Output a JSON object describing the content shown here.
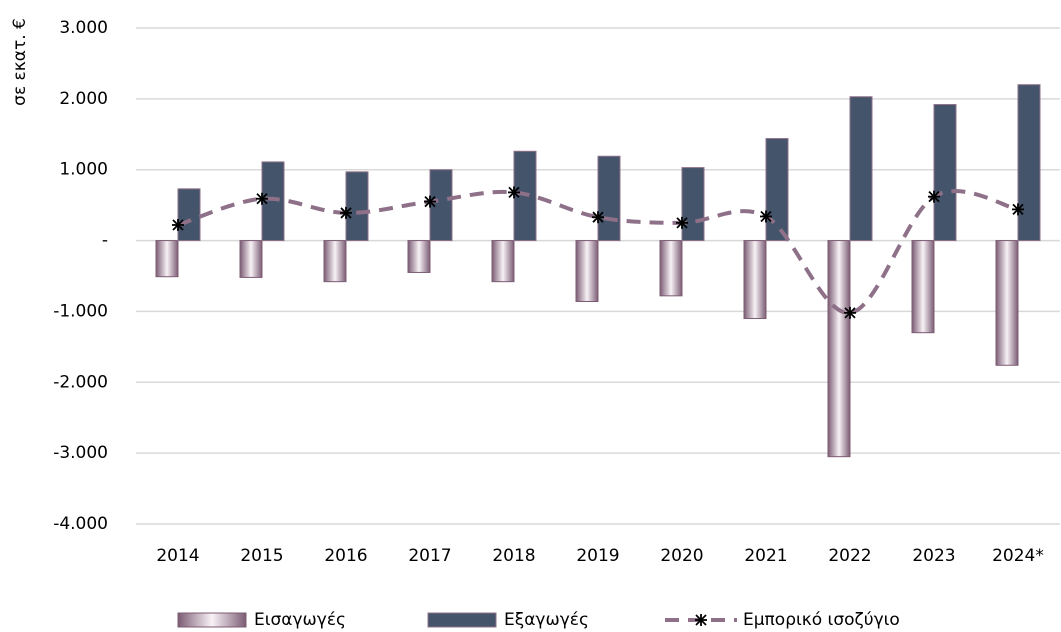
{
  "chart_data": {
    "type": "bar",
    "y_label": "σε εκατ. €",
    "categories": [
      "2014",
      "2015",
      "2016",
      "2017",
      "2018",
      "2019",
      "2020",
      "2021",
      "2022",
      "2023",
      "2024*"
    ],
    "series": [
      {
        "name": "Εισαγωγές",
        "type": "bar",
        "color": "#7b5c74",
        "values": [
          -510,
          -520,
          -580,
          -450,
          -580,
          -860,
          -780,
          -1100,
          -3050,
          -1300,
          -1760
        ]
      },
      {
        "name": "Εξαγωγές",
        "type": "bar",
        "color": "#44546a",
        "values": [
          730,
          1110,
          970,
          1000,
          1260,
          1190,
          1030,
          1440,
          2030,
          1920,
          2200
        ]
      },
      {
        "name": "Εμπορικό ισοζύγιο",
        "type": "line",
        "color": "#8e7189",
        "values": [
          220,
          590,
          390,
          550,
          680,
          330,
          250,
          340,
          -1020,
          620,
          440
        ]
      }
    ],
    "ylim": [
      -4000,
      3000
    ],
    "yticks": [
      {
        "value": 3000,
        "label": "3.000"
      },
      {
        "value": 2000,
        "label": "2.000"
      },
      {
        "value": 1000,
        "label": "1.000"
      },
      {
        "value": 0,
        "label": "-"
      },
      {
        "value": -1000,
        "label": "-1.000"
      },
      {
        "value": -2000,
        "label": "-2.000"
      },
      {
        "value": -3000,
        "label": "-3.000"
      },
      {
        "value": -4000,
        "label": "-4.000"
      }
    ],
    "grid": true,
    "legend": "bottom"
  }
}
